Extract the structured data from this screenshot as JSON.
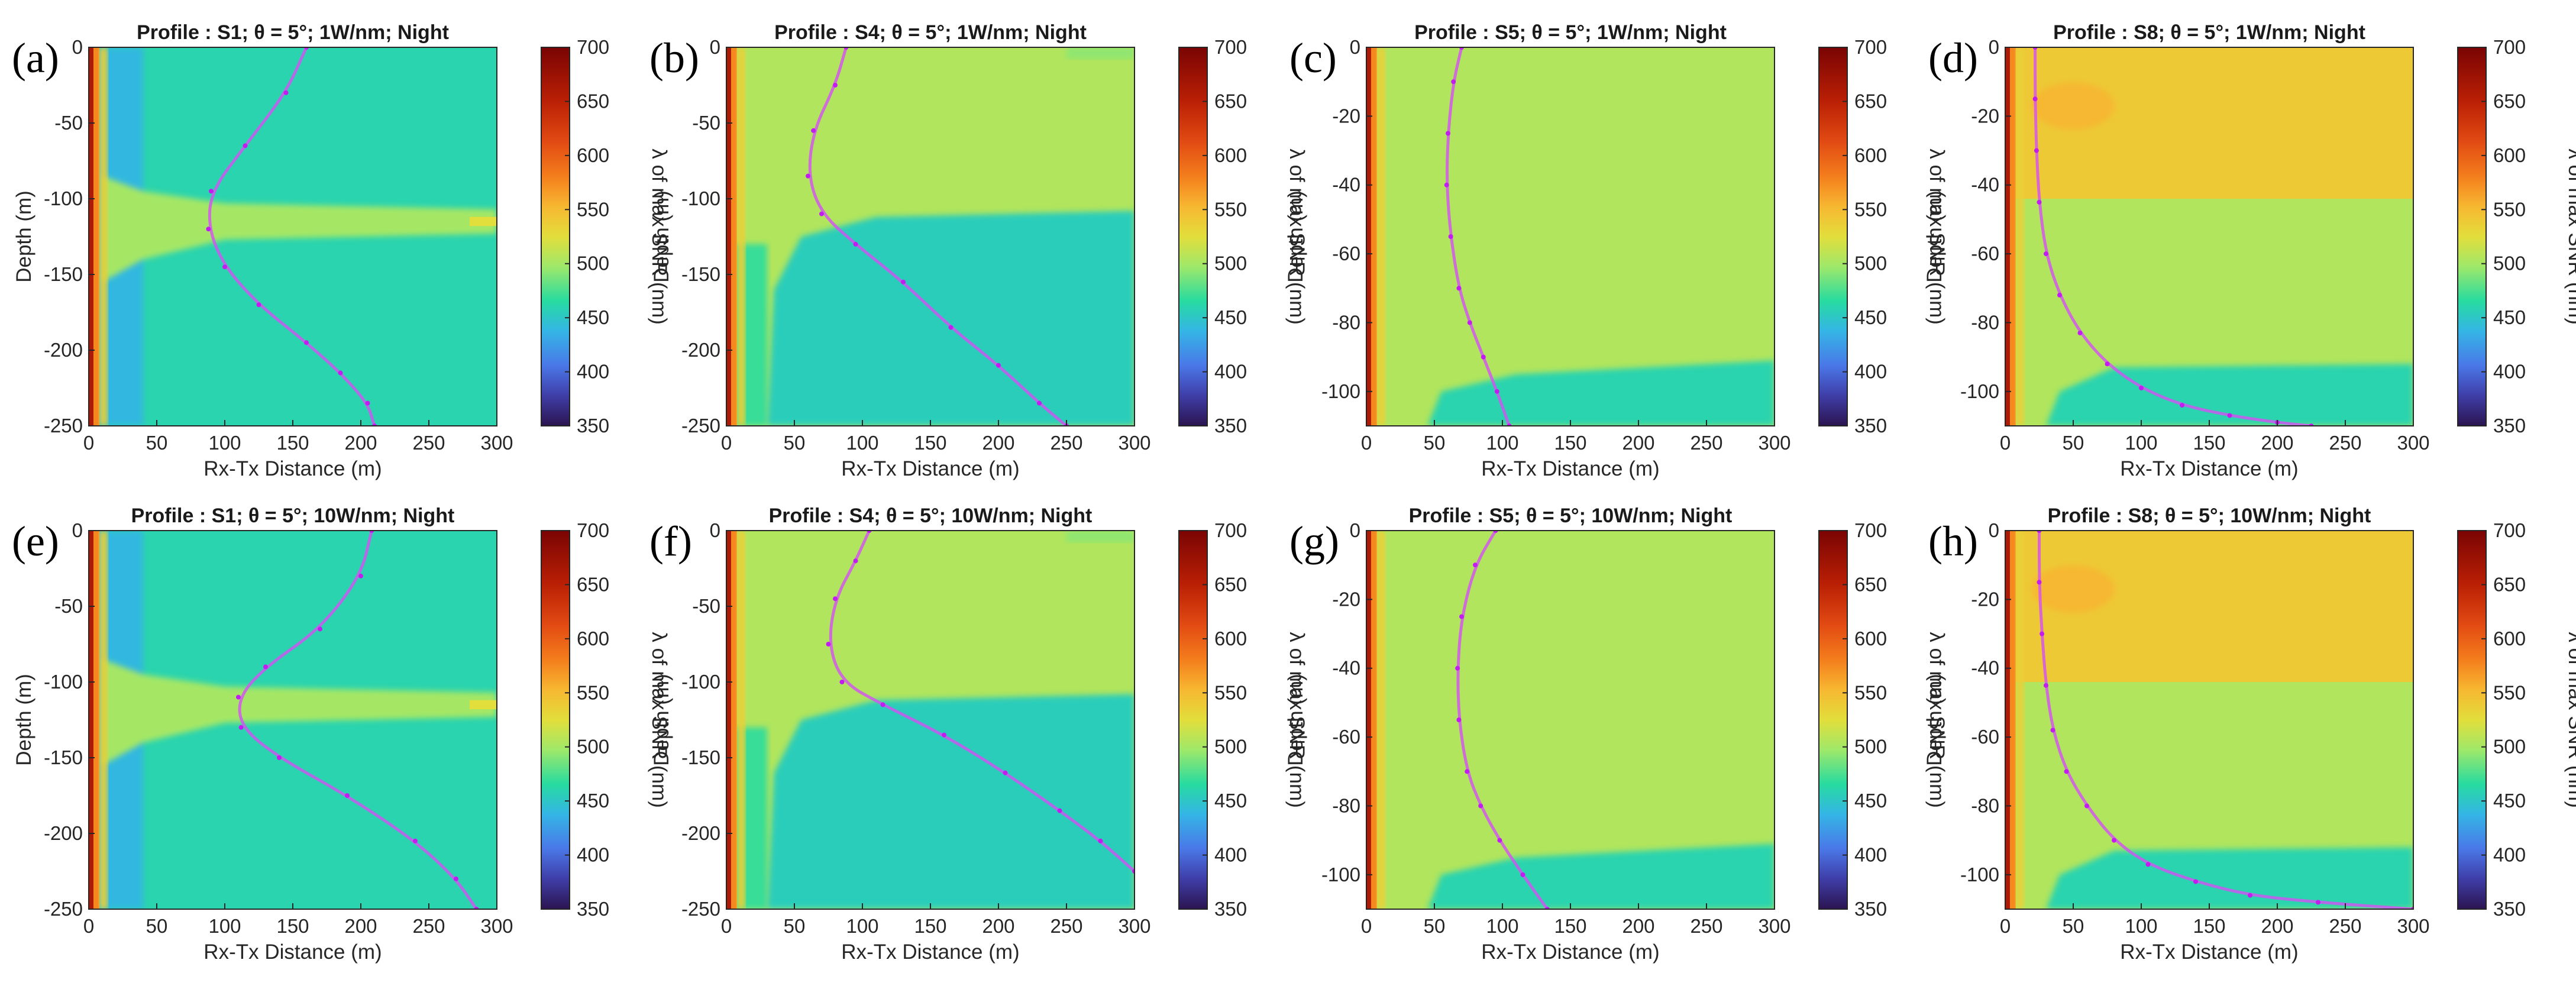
{
  "figure": {
    "colorbar_label": "λ of max SNR (nm)",
    "colorbar_ticks": [
      350,
      400,
      450,
      500,
      550,
      600,
      650,
      700
    ],
    "colorbar_range": [
      350,
      700
    ]
  },
  "chart_data": [
    {
      "panel": "(a)",
      "type": "heatmap",
      "title": "Profile : S1; θ = 5°; 1W/nm; Night",
      "xlabel": "Rx-Tx Distance (m)",
      "ylabel": "Depth (m)",
      "xlim": [
        0,
        300
      ],
      "ylim": [
        -250,
        0
      ],
      "xticks": [
        0,
        50,
        100,
        150,
        200,
        250,
        300
      ],
      "yticks": [
        0,
        -50,
        -100,
        -150,
        -200,
        -250
      ],
      "field": {
        "upper_nm": 460,
        "band_nm": 500,
        "band_depth": -115,
        "band_half_width": 8,
        "lower_nm": 455,
        "near_zone_nm": 440
      },
      "optimal_path": {
        "x": [
          160,
          145,
          115,
          90,
          88,
          100,
          125,
          160,
          185,
          205,
          210
        ],
        "depth": [
          0,
          -30,
          -65,
          -95,
          -120,
          -145,
          -170,
          -195,
          -215,
          -235,
          -250
        ]
      }
    },
    {
      "panel": "(b)",
      "type": "heatmap",
      "title": "Profile : S4; θ = 5°; 1W/nm; Night",
      "xlabel": "Rx-Tx Distance (m)",
      "ylabel": "Depth (m)",
      "xlim": [
        0,
        300
      ],
      "ylim": [
        -250,
        0
      ],
      "xticks": [
        0,
        50,
        100,
        150,
        200,
        250,
        300
      ],
      "yticks": [
        0,
        -50,
        -100,
        -150,
        -200,
        -250
      ],
      "field": {
        "upper_nm": 505,
        "boundary_depth_near": -125,
        "boundary_depth_far": -108,
        "lower_nm": 455,
        "near_zone_nm": 470
      },
      "optimal_path": {
        "x": [
          88,
          80,
          64,
          60,
          70,
          95,
          130,
          165,
          200,
          230,
          250
        ],
        "depth": [
          0,
          -25,
          -55,
          -85,
          -110,
          -130,
          -155,
          -185,
          -210,
          -235,
          -250
        ]
      }
    },
    {
      "panel": "(c)",
      "type": "heatmap",
      "title": "Profile : S5; θ = 5°; 1W/nm; Night",
      "xlabel": "Rx-Tx Distance (m)",
      "ylabel": "Depth (m)",
      "xlim": [
        0,
        300
      ],
      "ylim": [
        -110,
        0
      ],
      "xticks": [
        0,
        50,
        100,
        150,
        200,
        250,
        300
      ],
      "yticks": [
        0,
        -20,
        -40,
        -60,
        -80,
        -100
      ],
      "field": {
        "upper_nm": 505,
        "boundary_depth_near": -100,
        "boundary_depth_far": -91,
        "lower_nm": 460,
        "near_zone_nm": 500
      },
      "optimal_path": {
        "x": [
          70,
          64,
          60,
          59,
          62,
          68,
          76,
          86,
          96,
          105
        ],
        "depth": [
          0,
          -10,
          -25,
          -40,
          -55,
          -70,
          -80,
          -90,
          -100,
          -110
        ]
      }
    },
    {
      "panel": "(d)",
      "type": "heatmap",
      "title": "Profile : S8; θ = 5°; 1W/nm; Night",
      "xlabel": "Rx-Tx Distance (m)",
      "ylabel": "Depth (m)",
      "xlim": [
        0,
        300
      ],
      "ylim": [
        -110,
        0
      ],
      "xticks": [
        0,
        50,
        100,
        150,
        200,
        250,
        300
      ],
      "yticks": [
        0,
        -20,
        -40,
        -60,
        -80,
        -100
      ],
      "field": {
        "top_nm": 540,
        "top_band_depth": -44,
        "middle_nm": 505,
        "boundary_depth_near": -100,
        "boundary_depth_far": -92,
        "lower_nm": 460
      },
      "optimal_path": {
        "x": [
          22,
          22,
          23,
          25,
          30,
          40,
          55,
          75,
          100,
          130,
          165,
          200,
          225
        ],
        "depth": [
          0,
          -15,
          -30,
          -45,
          -60,
          -72,
          -83,
          -92,
          -99,
          -104,
          -107,
          -109,
          -110
        ]
      }
    },
    {
      "panel": "(e)",
      "type": "heatmap",
      "title": "Profile : S1; θ = 5°; 10W/nm; Night",
      "xlabel": "Rx-Tx Distance (m)",
      "ylabel": "Depth (m)",
      "xlim": [
        0,
        300
      ],
      "ylim": [
        -250,
        0
      ],
      "xticks": [
        0,
        50,
        100,
        150,
        200,
        250,
        300
      ],
      "yticks": [
        0,
        -50,
        -100,
        -150,
        -200,
        -250
      ],
      "field": {
        "upper_nm": 460,
        "band_nm": 500,
        "band_depth": -115,
        "band_half_width": 8,
        "lower_nm": 455,
        "near_zone_nm": 440
      },
      "optimal_path": {
        "x": [
          208,
          200,
          170,
          130,
          110,
          112,
          140,
          190,
          240,
          270,
          285
        ],
        "depth": [
          0,
          -30,
          -65,
          -90,
          -110,
          -130,
          -150,
          -175,
          -205,
          -230,
          -250
        ]
      }
    },
    {
      "panel": "(f)",
      "type": "heatmap",
      "title": "Profile : S4; θ = 5°; 10W/nm; Night",
      "xlabel": "Rx-Tx Distance (m)",
      "ylabel": "Depth (m)",
      "xlim": [
        0,
        300
      ],
      "ylim": [
        -250,
        0
      ],
      "xticks": [
        0,
        50,
        100,
        150,
        200,
        250,
        300
      ],
      "yticks": [
        0,
        -50,
        -100,
        -150,
        -200,
        -250
      ],
      "field": {
        "upper_nm": 505,
        "boundary_depth_near": -125,
        "boundary_depth_far": -108,
        "lower_nm": 455,
        "near_zone_nm": 470
      },
      "optimal_path": {
        "x": [
          105,
          95,
          80,
          75,
          85,
          115,
          160,
          205,
          245,
          275,
          300
        ],
        "depth": [
          0,
          -20,
          -45,
          -75,
          -100,
          -115,
          -135,
          -160,
          -185,
          -205,
          -225
        ]
      }
    },
    {
      "panel": "(g)",
      "type": "heatmap",
      "title": "Profile : S5; θ = 5°; 10W/nm; Night",
      "xlabel": "Rx-Tx Distance (m)",
      "ylabel": "Depth (m)",
      "xlim": [
        0,
        300
      ],
      "ylim": [
        -110,
        0
      ],
      "xticks": [
        0,
        50,
        100,
        150,
        200,
        250,
        300
      ],
      "yticks": [
        0,
        -20,
        -40,
        -60,
        -80,
        -100
      ],
      "field": {
        "upper_nm": 505,
        "boundary_depth_near": -100,
        "boundary_depth_far": -91,
        "lower_nm": 460,
        "near_zone_nm": 500
      },
      "optimal_path": {
        "x": [
          95,
          80,
          70,
          67,
          68,
          74,
          84,
          98,
          115,
          133
        ],
        "depth": [
          0,
          -10,
          -25,
          -40,
          -55,
          -70,
          -80,
          -90,
          -100,
          -110
        ]
      }
    },
    {
      "panel": "(h)",
      "type": "heatmap",
      "title": "Profile : S8; θ = 5°; 10W/nm; Night",
      "xlabel": "Rx-Tx Distance (m)",
      "ylabel": "Depth (m)",
      "xlim": [
        0,
        300
      ],
      "ylim": [
        -110,
        0
      ],
      "xticks": [
        0,
        50,
        100,
        150,
        200,
        250,
        300
      ],
      "yticks": [
        0,
        -20,
        -40,
        -60,
        -80,
        -100
      ],
      "field": {
        "top_nm": 540,
        "top_band_depth": -44,
        "middle_nm": 505,
        "boundary_depth_near": -100,
        "boundary_depth_far": -92,
        "lower_nm": 460
      },
      "optimal_path": {
        "x": [
          25,
          25,
          27,
          30,
          35,
          45,
          60,
          80,
          105,
          140,
          180,
          230,
          300
        ],
        "depth": [
          0,
          -15,
          -30,
          -45,
          -58,
          -70,
          -80,
          -90,
          -97,
          -102,
          -106,
          -108,
          -110
        ]
      }
    }
  ]
}
